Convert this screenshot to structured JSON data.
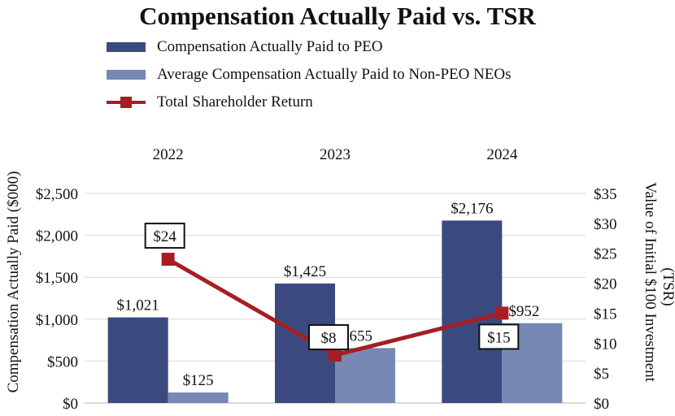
{
  "chart_data": {
    "type": "bar",
    "title": "Compensation Actually Paid vs. TSR",
    "categories": [
      "2022",
      "2023",
      "2024"
    ],
    "series": [
      {
        "name": "Compensation Actually Paid to PEO",
        "values": [
          1021,
          1425,
          2176
        ],
        "labels": [
          "$1,021",
          "$1,425",
          "$2,176"
        ],
        "axis": "left",
        "color": "#3b4a7e"
      },
      {
        "name": "Average Compensation Actually Paid to Non-PEO NEOs",
        "values": [
          125,
          655,
          952
        ],
        "labels": [
          "$125",
          "$655",
          "$952"
        ],
        "axis": "left",
        "color": "#7688b3"
      },
      {
        "name": "Total Shareholder Return",
        "type": "line",
        "values": [
          24,
          8,
          15
        ],
        "labels": [
          "$24",
          "$8",
          "$15"
        ],
        "axis": "right",
        "color": "#a61e22"
      }
    ],
    "ylabel": "Compensation Actually Paid ($000)",
    "ylim": [
      0,
      2500
    ],
    "yticks": [
      "$0",
      "$500",
      "$1,000",
      "$1,500",
      "$2,000",
      "$2,500"
    ],
    "y2label_lines": [
      "Value of Initial $100 Investment",
      "(TSR)"
    ],
    "y2lim": [
      0,
      35
    ],
    "y2ticks": [
      "$0",
      "$5",
      "$10",
      "$15",
      "$20",
      "$25",
      "$30",
      "$35"
    ],
    "grid": true,
    "legend_position": "top-left"
  }
}
